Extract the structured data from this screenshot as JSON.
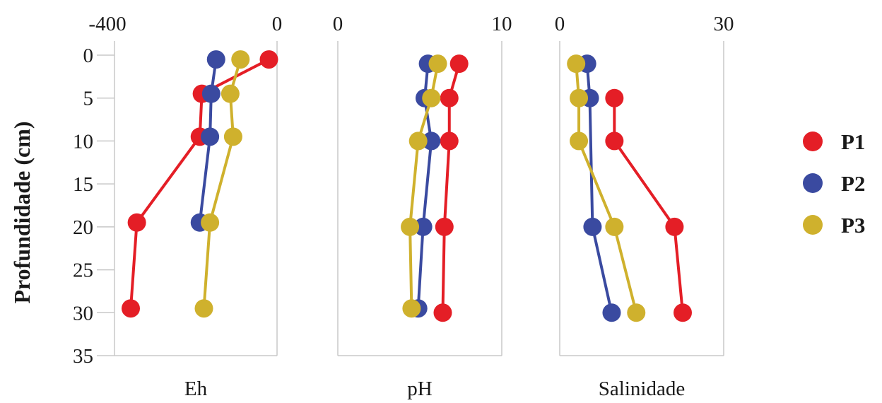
{
  "chart_data": {
    "type": "scatter",
    "ylabel": "Profundidade (cm)",
    "y_ticks": [
      0,
      5,
      10,
      15,
      20,
      25,
      30,
      35
    ],
    "ylim": [
      0,
      35
    ],
    "y_inverted": true,
    "grid": false,
    "legend_position": "right",
    "legend": [
      {
        "name": "P1",
        "color": "#e41e26"
      },
      {
        "name": "P2",
        "color": "#3a4aa0"
      },
      {
        "name": "P3",
        "color": "#cfb12d"
      }
    ],
    "panels": [
      {
        "xlabel": "Eh",
        "xlim": [
          -400,
          0
        ],
        "x_ticks": [
          "-400",
          "0"
        ],
        "series": [
          {
            "name": "P1",
            "points": [
              [
                -20,
                0.5
              ],
              [
                -185,
                4.5
              ],
              [
                -190,
                9.5
              ],
              [
                -345,
                19.5
              ],
              [
                -360,
                29.5
              ]
            ]
          },
          {
            "name": "P2",
            "points": [
              [
                -150,
                0.5
              ],
              [
                -162,
                4.5
              ],
              [
                -165,
                9.5
              ],
              [
                -190,
                19.5
              ]
            ]
          },
          {
            "name": "P3",
            "points": [
              [
                -90,
                0.5
              ],
              [
                -115,
                4.5
              ],
              [
                -108,
                9.5
              ],
              [
                -165,
                19.5
              ],
              [
                -180,
                29.5
              ]
            ]
          }
        ]
      },
      {
        "xlabel": "pH",
        "xlim": [
          0,
          10
        ],
        "x_ticks": [
          "0",
          "10"
        ],
        "series": [
          {
            "name": "P1",
            "points": [
              [
                7.4,
                1
              ],
              [
                6.8,
                5
              ],
              [
                6.8,
                10
              ],
              [
                6.5,
                20
              ],
              [
                6.4,
                30
              ]
            ]
          },
          {
            "name": "P2",
            "points": [
              [
                5.5,
                1
              ],
              [
                5.3,
                5
              ],
              [
                5.7,
                10
              ],
              [
                5.2,
                20
              ],
              [
                4.9,
                29.5
              ]
            ]
          },
          {
            "name": "P3",
            "points": [
              [
                6.1,
                1
              ],
              [
                5.7,
                5
              ],
              [
                4.9,
                10
              ],
              [
                4.4,
                20
              ],
              [
                4.5,
                29.5
              ]
            ]
          }
        ]
      },
      {
        "xlabel": "Salinidade",
        "xlim": [
          0,
          30
        ],
        "x_ticks": [
          "0",
          "30"
        ],
        "series": [
          {
            "name": "P1",
            "points": [
              [
                10,
                5
              ],
              [
                10,
                10
              ],
              [
                21,
                20
              ],
              [
                22.5,
                30
              ]
            ]
          },
          {
            "name": "P2",
            "points": [
              [
                5,
                1
              ],
              [
                5.5,
                5
              ],
              [
                6,
                20
              ],
              [
                9.5,
                30
              ]
            ]
          },
          {
            "name": "P3",
            "points": [
              [
                3,
                1
              ],
              [
                3.5,
                5
              ],
              [
                3.5,
                10
              ],
              [
                10,
                20
              ],
              [
                14,
                30
              ]
            ]
          }
        ]
      }
    ]
  }
}
